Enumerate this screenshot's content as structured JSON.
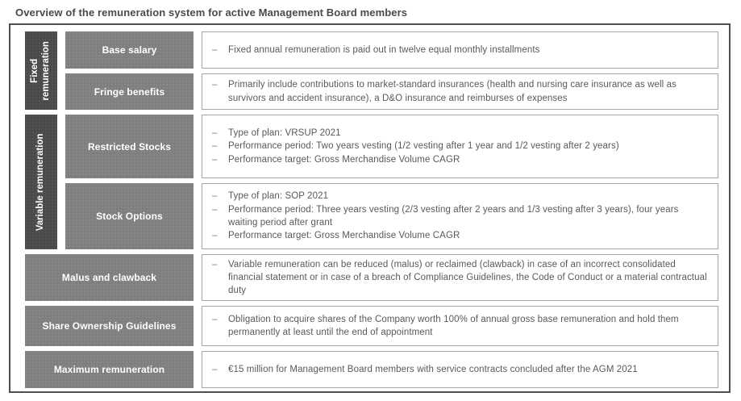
{
  "title": "Overview of the remuneration system for active Management Board members",
  "bullet_char": "–",
  "colors": {
    "frame_border": "#4f4f4f",
    "group_bar": "#4a4a4a",
    "label_box": "#7f7f7f",
    "label_text": "#ffffff",
    "desc_border": "#a6a6a6",
    "body_text": "#595959",
    "title_text": "#4a4a4a"
  },
  "groups": {
    "fixed": {
      "label": "Fixed remuneration"
    },
    "variable": {
      "label": "Variable remuneration"
    }
  },
  "rows": [
    {
      "label": "Base salary",
      "bullets": [
        "Fixed annual remuneration is paid out in twelve equal monthly installments"
      ]
    },
    {
      "label": "Fringe benefits",
      "bullets": [
        "Primarily include contributions to market-standard insurances (health and nursing care insurance as well as survivors and accident insurance), a D&O insurance and reimburses of expenses"
      ]
    },
    {
      "label": "Restricted Stocks",
      "bullets": [
        "Type of plan: VRSUP 2021",
        "Performance period: Two years vesting (1/2 vesting after 1 year and 1/2 vesting after 2 years)",
        "Performance target: Gross Merchandise Volume CAGR"
      ]
    },
    {
      "label": "Stock Options",
      "bullets": [
        "Type of plan: SOP 2021",
        "Performance period: Three years vesting (2/3 vesting after 2 years and 1/3 vesting after 3 years), four years waiting period after grant",
        "Performance target: Gross Merchandise Volume CAGR"
      ]
    },
    {
      "label": "Malus and clawback",
      "bullets": [
        "Variable remuneration can be reduced (malus) or reclaimed (clawback) in case of an incorrect consolidated financial statement or in case of a breach of Compliance Guidelines, the Code of Conduct or a material contractual duty"
      ]
    },
    {
      "label": "Share Ownership Guidelines",
      "bullets": [
        "Obligation to acquire shares of the Company worth 100% of annual gross base remuneration and hold them permanently at least until the end of appointment"
      ]
    },
    {
      "label": "Maximum remuneration",
      "bullets": [
        "€15 million for Management Board members with service contracts concluded after the AGM 2021"
      ]
    }
  ]
}
